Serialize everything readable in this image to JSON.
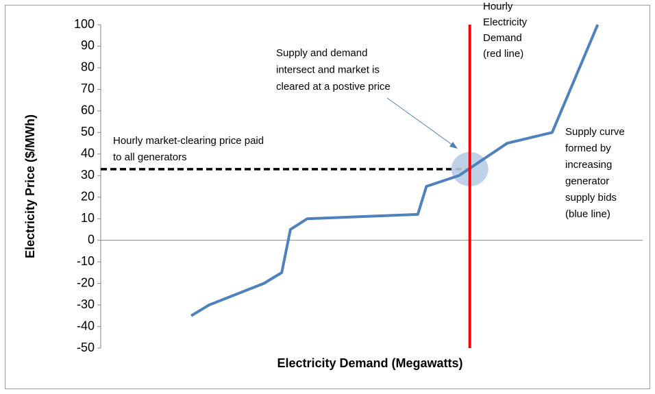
{
  "chart_data": {
    "type": "line",
    "x_label": "Electricity Demand (Megawatts)",
    "y_label": "Electricity Price ($/MWh)",
    "xlim": [
      0,
      100
    ],
    "ylim": [
      -50,
      100
    ],
    "yticks": [
      -50,
      -40,
      -30,
      -20,
      -10,
      0,
      10,
      20,
      30,
      40,
      50,
      60,
      70,
      80,
      90,
      100
    ],
    "series": [
      {
        "name": "Supply curve",
        "color": "#4f81bd",
        "x": [
          16.7,
          20.0,
          30.1,
          33.4,
          35.0,
          38.1,
          58.5,
          60.1,
          66.1,
          75.0,
          83.3,
          91.7
        ],
        "values": [
          -35,
          -30,
          -20,
          -15,
          5,
          10,
          12,
          25,
          30,
          45,
          50,
          100
        ]
      }
    ],
    "demand_x": 68.1,
    "demand_color": "#ff0000",
    "clearing_price": 33,
    "annotations": [
      {
        "lines": [
          "Hourly",
          "Electricity",
          "Demand",
          "(red line)"
        ]
      },
      {
        "lines": [
          "Supply and demand",
          "intersect and market is",
          "cleared at a postive price"
        ]
      },
      {
        "lines": [
          "Hourly market-clearing price paid",
          "to all generators"
        ]
      },
      {
        "lines": [
          "Supply curve",
          "formed by",
          "increasing",
          "generator",
          "supply bids",
          "(blue line)"
        ]
      }
    ]
  }
}
